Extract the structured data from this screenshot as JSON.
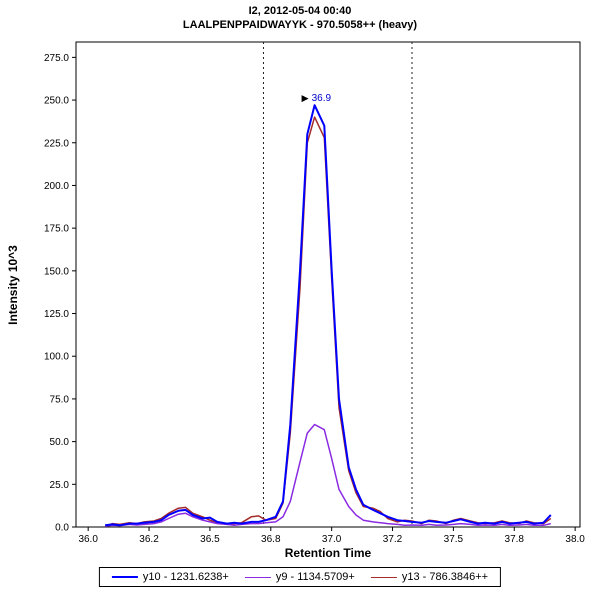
{
  "header": {
    "title": "I2, 2012-05-04 00:40",
    "subtitle": "LAALPENPPAIDWAYYK - 970.5058++ (heavy)"
  },
  "chart_data": {
    "type": "line",
    "title": "I2, 2012-05-04 00:40",
    "subtitle": "LAALPENPPAIDWAYYK - 970.5058++ (heavy)",
    "xlabel": "Retention Time",
    "ylabel": "Intensity 10^3",
    "xlim": [
      35.95,
      38.02
    ],
    "ylim": [
      0,
      284
    ],
    "grid": false,
    "legend_position": "bottom",
    "xticks": {
      "values": [
        36.0,
        36.25,
        36.5,
        36.75,
        37.0,
        37.25,
        37.5,
        37.75,
        38.0
      ],
      "labels": [
        "36.0",
        "36.2",
        "36.5",
        "36.8",
        "37.0",
        "37.2",
        "37.5",
        "37.8",
        "38.0"
      ]
    },
    "yticks": {
      "values": [
        0,
        25,
        50,
        75,
        100,
        125,
        150,
        175,
        200,
        225,
        250,
        275
      ],
      "labels": [
        "0.0",
        "25.0",
        "50.0",
        "75.0",
        "100.0",
        "125.0",
        "150.0",
        "175.0",
        "200.0",
        "225.0",
        "250.0",
        "275.0"
      ]
    },
    "integration_boundaries": [
      36.72,
      37.33
    ],
    "boundary_line_style": "dashed",
    "peak_annotation": {
      "label": "36.9",
      "x": 36.93,
      "y": 247,
      "color": "#0000cc"
    },
    "x": [
      36.07,
      36.1,
      36.13,
      36.17,
      36.2,
      36.23,
      36.27,
      36.3,
      36.33,
      36.37,
      36.4,
      36.43,
      36.47,
      36.5,
      36.53,
      36.57,
      36.6,
      36.63,
      36.67,
      36.7,
      36.73,
      36.77,
      36.8,
      36.83,
      36.87,
      36.9,
      36.93,
      36.97,
      37.0,
      37.03,
      37.07,
      37.1,
      37.13,
      37.17,
      37.2,
      37.23,
      37.27,
      37.3,
      37.33,
      37.37,
      37.4,
      37.43,
      37.47,
      37.5,
      37.53,
      37.57,
      37.6,
      37.63,
      37.67,
      37.7,
      37.73,
      37.77,
      37.8,
      37.83,
      37.87,
      37.9
    ],
    "series": [
      {
        "name": "y10 - 1231.6238+",
        "color": "#0000FF",
        "width": 2,
        "values": [
          1,
          1.5,
          1,
          2,
          2,
          2.5,
          3,
          4,
          7,
          9.5,
          10,
          7,
          5,
          5.5,
          3,
          2,
          2.5,
          2,
          3,
          3,
          4,
          6,
          15,
          60,
          150,
          230,
          247,
          235,
          150,
          75,
          35,
          22,
          13,
          10,
          8,
          6,
          4,
          3.5,
          3,
          2.5,
          3.5,
          3,
          2.5,
          3.5,
          4.5,
          3,
          2,
          2.5,
          2,
          3,
          2,
          2.5,
          3,
          2,
          2.5,
          7
        ]
      },
      {
        "name": "y9 - 1134.5709+",
        "color": "#8A2BE2",
        "width": 1.5,
        "values": [
          0.5,
          1,
          0.8,
          1.5,
          1.2,
          1.5,
          2,
          3,
          5,
          7.5,
          8,
          6,
          4,
          3,
          2,
          1.5,
          1,
          1.5,
          2,
          2,
          2.5,
          3,
          6,
          15,
          38,
          55,
          60,
          57,
          40,
          22,
          12,
          7,
          4,
          3,
          2.5,
          2,
          1.5,
          1,
          1.2,
          1,
          1.5,
          1,
          1.2,
          1.5,
          2,
          1.5,
          1,
          1.2,
          1,
          1.5,
          1,
          1.2,
          1.5,
          1,
          1,
          2
        ]
      },
      {
        "name": "y13 - 786.3846++",
        "color": "#A52A2A",
        "width": 1.5,
        "values": [
          0.5,
          2,
          1.5,
          2.5,
          2,
          3,
          3.5,
          5,
          8,
          11,
          11.5,
          8,
          6,
          4,
          2.5,
          1.5,
          2,
          2.5,
          6,
          6.5,
          4,
          5,
          14,
          55,
          140,
          225,
          240,
          228,
          145,
          70,
          33,
          20,
          12,
          11,
          9,
          5,
          3,
          4,
          3.5,
          2,
          4,
          3.5,
          2,
          4,
          5,
          3.5,
          2.5,
          2,
          2.5,
          3.5,
          2.5,
          2,
          3.5,
          2.5,
          2,
          5
        ]
      }
    ]
  }
}
